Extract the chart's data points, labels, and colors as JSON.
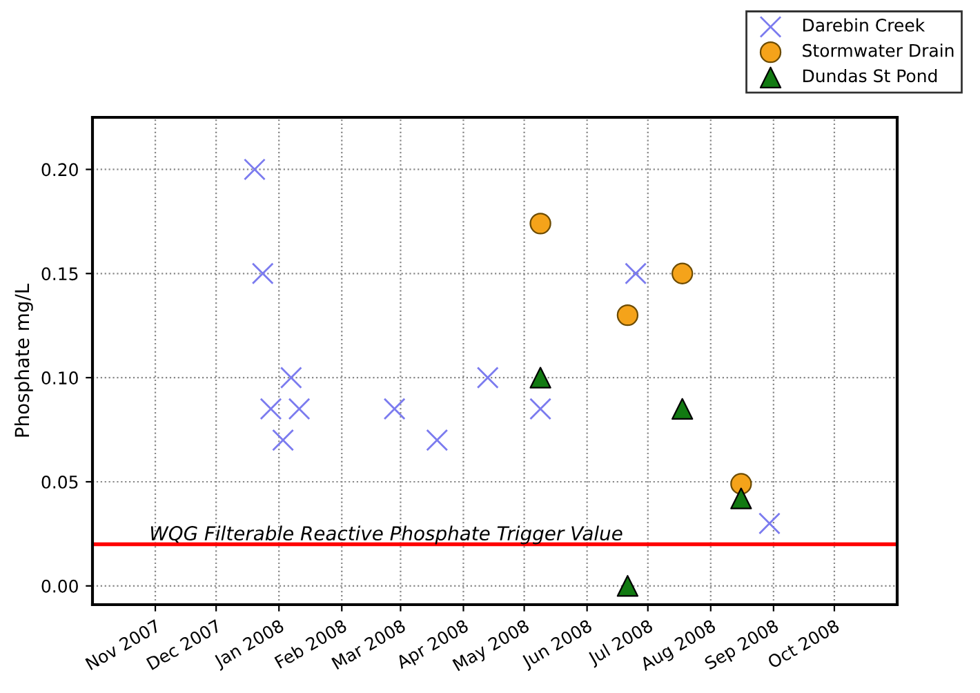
{
  "chart_data": {
    "type": "scatter",
    "ylabel": "Phosphate mg/L",
    "series": [
      {
        "name": "Darebin Creek",
        "color": "#7b7bef",
        "marker": "cross",
        "x": [
          "2007-12-20",
          "2007-12-24",
          "2007-12-28",
          "2008-01-03",
          "2008-01-07",
          "2008-01-11",
          "2008-02-27",
          "2008-03-19",
          "2008-04-13",
          "2008-05-09",
          "2008-06-25",
          "2008-08-30"
        ],
        "values": [
          0.2,
          0.15,
          0.085,
          0.07,
          0.1,
          0.085,
          0.085,
          0.07,
          0.1,
          0.085,
          0.15,
          0.03
        ]
      },
      {
        "name": "Stormwater Drain",
        "color": "#f5a31a",
        "marker": "circle",
        "x": [
          "2008-05-09",
          "2008-06-21",
          "2008-07-18",
          "2008-08-16"
        ],
        "values": [
          0.174,
          0.13,
          0.15,
          0.049
        ]
      },
      {
        "name": "Dundas St Pond",
        "color": "#127a12",
        "marker": "triangle",
        "x": [
          "2008-05-09",
          "2008-06-21",
          "2008-07-18",
          "2008-08-16"
        ],
        "values": [
          0.1,
          0,
          0.085,
          0.042
        ]
      }
    ],
    "xlim": [
      "2007-10-01",
      "2008-11-01"
    ],
    "xticks": [
      {
        "value": "2007-11-01",
        "label": "Nov 2007"
      },
      {
        "value": "2007-12-01",
        "label": "Dec 2007"
      },
      {
        "value": "2008-01-01",
        "label": "Jan 2008"
      },
      {
        "value": "2008-02-01",
        "label": "Feb 2008"
      },
      {
        "value": "2008-03-01",
        "label": "Mar 2008"
      },
      {
        "value": "2008-04-01",
        "label": "Apr 2008"
      },
      {
        "value": "2008-05-01",
        "label": "May 2008"
      },
      {
        "value": "2008-06-01",
        "label": "Jun 2008"
      },
      {
        "value": "2008-07-01",
        "label": "Jul 2008"
      },
      {
        "value": "2008-08-01",
        "label": "Aug 2008"
      },
      {
        "value": "2008-09-01",
        "label": "Sep 2008"
      },
      {
        "value": "2008-10-01",
        "label": "Oct 2008"
      }
    ],
    "ylim": [
      -0.009,
      0.225
    ],
    "yticks": [
      {
        "value": 0,
        "label": "0.00"
      },
      {
        "value": 0.05,
        "label": "0.05"
      },
      {
        "value": 0.1,
        "label": "0.10"
      },
      {
        "value": 0.15,
        "label": "0.15"
      },
      {
        "value": 0.2,
        "label": "0.20"
      }
    ],
    "ref_lines": [
      {
        "axis": "y",
        "value": 0.02,
        "label": "WQG Filterable Reactive Phosphate Trigger Value",
        "color": "#ff0000"
      }
    ],
    "grid": true,
    "legend": "top right"
  }
}
